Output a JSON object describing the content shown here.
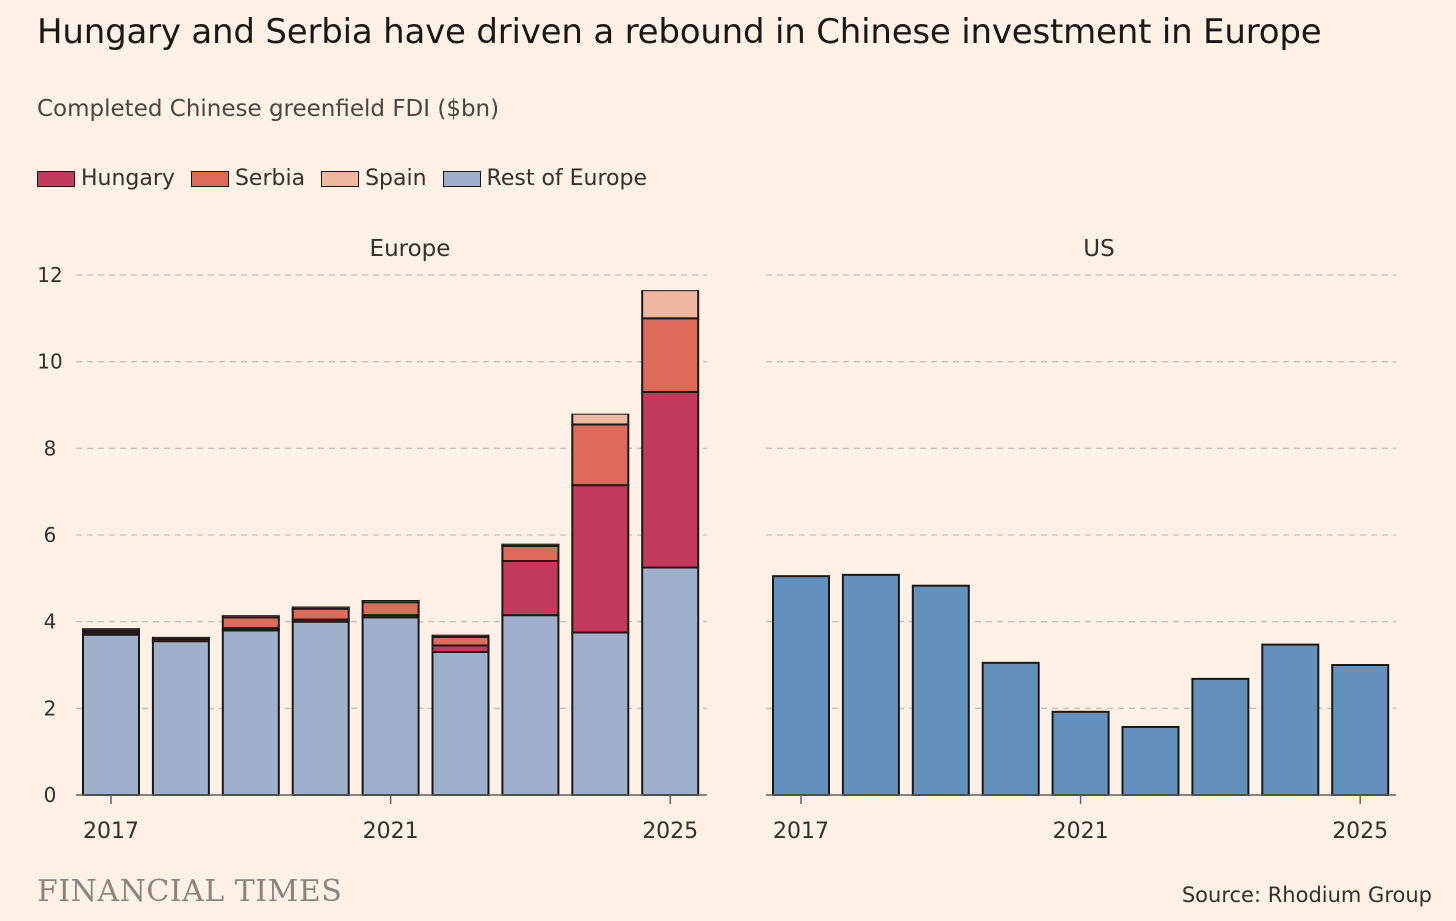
{
  "title": "Hungary and Serbia have driven a rebound in Chinese investment in Europe",
  "subtitle": "Completed Chinese greenfield FDI ($bn)",
  "legend": [
    {
      "label": "Hungary",
      "color": "#c23b5e"
    },
    {
      "label": "Serbia",
      "color": "#de6b5a"
    },
    {
      "label": "Spain",
      "color": "#f0b7a0"
    },
    {
      "label": "Rest of Europe",
      "color": "#9fb0cd"
    }
  ],
  "brand": "FINANCIAL TIMES",
  "source": "Source: Rhodium Group",
  "chart_data": [
    {
      "type": "bar",
      "stacked": true,
      "panel_title": "Europe",
      "x": [
        2017,
        2018,
        2019,
        2020,
        2021,
        2022,
        2023,
        2024,
        2025
      ],
      "x_tick_labels": [
        "2017",
        "2021",
        "2025"
      ],
      "y_tick_labels": [
        "0",
        "2",
        "4",
        "6",
        "8",
        "10",
        "12"
      ],
      "ylim": [
        0,
        12
      ],
      "grid": true,
      "series": [
        {
          "name": "Rest of Europe",
          "color": "#9fb0cd",
          "values": [
            3.7,
            3.55,
            3.8,
            4.0,
            4.1,
            3.3,
            4.15,
            3.75,
            5.25
          ]
        },
        {
          "name": "Hungary",
          "color": "#c23b5e",
          "values": [
            0.05,
            0.05,
            0.05,
            0.05,
            0.05,
            0.15,
            1.25,
            3.4,
            4.05
          ]
        },
        {
          "name": "Serbia",
          "color": "#de6b5a",
          "values": [
            0.05,
            0.05,
            0.25,
            0.25,
            0.3,
            0.2,
            0.35,
            1.4,
            1.7
          ]
        },
        {
          "name": "Spain",
          "color": "#f0b7a0",
          "values": [
            0.05,
            0.0,
            0.05,
            0.05,
            0.05,
            0.05,
            0.05,
            0.25,
            0.65
          ]
        }
      ]
    },
    {
      "type": "bar",
      "panel_title": "US",
      "x": [
        2017,
        2018,
        2019,
        2020,
        2021,
        2022,
        2023,
        2024,
        2025
      ],
      "x_tick_labels": [
        "2017",
        "2021",
        "2025"
      ],
      "ylim": [
        0,
        12
      ],
      "grid": true,
      "series": [
        {
          "color": "#6390bd",
          "values": [
            5.05,
            5.08,
            4.83,
            3.05,
            1.92,
            1.57,
            2.68,
            3.47,
            3.0
          ]
        }
      ]
    }
  ]
}
